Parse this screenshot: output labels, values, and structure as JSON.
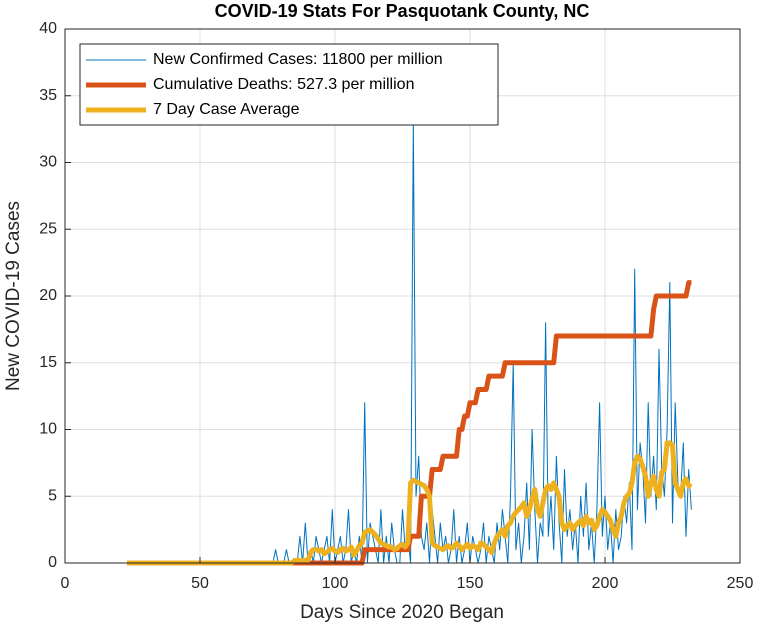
{
  "chart_data": {
    "type": "line",
    "title": "COVID-19 Stats For Pasquotank County, NC",
    "x_label": "Days Since 2020 Began",
    "y_label": "New COVID-19 Cases",
    "xlim": [
      0,
      250
    ],
    "xticks": [
      0,
      50,
      100,
      150,
      200,
      250
    ],
    "ylim": [
      0,
      40
    ],
    "yticks": [
      0,
      5,
      10,
      15,
      20,
      25,
      30,
      35,
      40
    ],
    "grid": true,
    "legend_position": "upper-left",
    "x": [
      23,
      24,
      25,
      26,
      27,
      28,
      29,
      30,
      31,
      32,
      33,
      34,
      35,
      36,
      37,
      38,
      39,
      40,
      41,
      42,
      43,
      44,
      45,
      46,
      47,
      48,
      49,
      50,
      51,
      52,
      53,
      54,
      55,
      56,
      57,
      58,
      59,
      60,
      61,
      62,
      63,
      64,
      65,
      66,
      67,
      68,
      69,
      70,
      71,
      72,
      73,
      74,
      75,
      76,
      77,
      78,
      79,
      80,
      81,
      82,
      83,
      84,
      85,
      86,
      87,
      88,
      89,
      90,
      91,
      92,
      93,
      94,
      95,
      96,
      97,
      98,
      99,
      100,
      101,
      102,
      103,
      104,
      105,
      106,
      107,
      108,
      109,
      110,
      111,
      112,
      113,
      114,
      115,
      116,
      117,
      118,
      119,
      120,
      121,
      122,
      123,
      124,
      125,
      126,
      127,
      128,
      129,
      130,
      131,
      132,
      133,
      134,
      135,
      136,
      137,
      138,
      139,
      140,
      141,
      142,
      143,
      144,
      145,
      146,
      147,
      148,
      149,
      150,
      151,
      152,
      153,
      154,
      155,
      156,
      157,
      158,
      159,
      160,
      161,
      162,
      163,
      164,
      165,
      166,
      167,
      168,
      169,
      170,
      171,
      172,
      173,
      174,
      175,
      176,
      177,
      178,
      179,
      180,
      181,
      182,
      183,
      184,
      185,
      186,
      187,
      188,
      189,
      190,
      191,
      192,
      193,
      194,
      195,
      196,
      197,
      198,
      199,
      200,
      201,
      202,
      203,
      204,
      205,
      206,
      207,
      208,
      209,
      210,
      211,
      212,
      213,
      214,
      215,
      216,
      217,
      218,
      219,
      220,
      221,
      222,
      223,
      224,
      225,
      226,
      227,
      228,
      229,
      230,
      231,
      232
    ],
    "series": [
      {
        "name": "New Confirmed Cases: 11800 per million",
        "color": "#0072BD",
        "width": 1,
        "values": [
          0,
          0,
          0,
          0,
          0,
          0,
          0,
          0,
          0,
          0,
          0,
          0,
          0,
          0,
          0,
          0,
          0,
          0,
          0,
          0,
          0,
          0,
          0,
          0,
          0,
          0,
          0,
          0,
          0,
          0,
          0,
          0,
          0,
          0,
          0,
          0,
          0,
          0,
          0,
          0,
          0,
          0,
          0,
          0,
          0,
          0,
          0,
          0,
          0,
          0,
          0,
          0,
          0,
          0,
          0,
          1,
          0,
          0,
          0,
          1,
          0,
          0,
          0,
          0,
          2,
          0,
          3,
          0,
          1,
          0,
          2,
          1,
          0,
          1,
          2,
          0,
          4,
          0,
          1,
          2,
          0,
          1,
          4,
          0,
          1,
          0,
          2,
          0,
          12,
          0,
          3,
          2,
          1,
          0,
          4,
          0,
          2,
          0,
          3,
          1,
          0,
          0,
          4,
          1,
          2,
          0,
          33,
          5,
          8,
          2,
          1,
          3,
          0,
          4,
          2,
          0,
          3,
          1,
          2,
          0,
          1,
          4,
          0,
          2,
          0,
          1,
          3,
          0,
          2,
          1,
          0,
          1,
          3,
          0,
          2,
          1,
          0,
          3,
          1,
          4,
          2,
          0,
          5,
          15,
          1,
          3,
          0,
          2,
          6,
          1,
          10,
          4,
          0,
          3,
          2,
          18,
          2,
          5,
          1,
          8,
          3,
          0,
          7,
          2,
          4,
          1,
          3,
          0,
          5,
          2,
          6,
          1,
          3,
          0,
          4,
          12,
          2,
          5,
          1,
          3,
          0,
          4,
          1,
          2,
          5,
          3,
          6,
          1,
          22,
          4,
          9,
          7,
          3,
          12,
          5,
          8,
          4,
          16,
          7,
          5,
          10,
          21,
          3,
          12,
          6,
          5,
          9,
          2,
          7,
          4
        ]
      },
      {
        "name": "Cumulative Deaths: 527.3 per million",
        "color": "#D95319",
        "width": 5,
        "values": [
          0,
          0,
          0,
          0,
          0,
          0,
          0,
          0,
          0,
          0,
          0,
          0,
          0,
          0,
          0,
          0,
          0,
          0,
          0,
          0,
          0,
          0,
          0,
          0,
          0,
          0,
          0,
          0,
          0,
          0,
          0,
          0,
          0,
          0,
          0,
          0,
          0,
          0,
          0,
          0,
          0,
          0,
          0,
          0,
          0,
          0,
          0,
          0,
          0,
          0,
          0,
          0,
          0,
          0,
          0,
          0,
          0,
          0,
          0,
          0,
          0,
          0,
          0,
          0,
          0,
          0,
          0,
          0,
          0,
          0,
          0,
          0,
          0,
          0,
          0,
          0,
          0,
          0,
          0,
          0,
          0,
          0,
          0,
          0,
          0,
          0,
          0,
          0,
          1,
          1,
          1,
          1,
          1,
          1,
          1,
          1,
          1,
          1,
          1,
          1,
          1,
          1,
          1,
          1,
          1,
          2,
          2,
          2,
          2,
          5,
          5,
          5,
          5,
          7,
          7,
          7,
          7,
          8,
          8,
          8,
          8,
          8,
          8,
          10,
          10,
          11,
          11,
          12,
          12,
          12,
          13,
          13,
          13,
          13,
          14,
          14,
          14,
          14,
          14,
          14,
          15,
          15,
          15,
          15,
          15,
          15,
          15,
          15,
          15,
          15,
          15,
          15,
          15,
          15,
          15,
          15,
          15,
          15,
          15,
          17,
          17,
          17,
          17,
          17,
          17,
          17,
          17,
          17,
          17,
          17,
          17,
          17,
          17,
          17,
          17,
          17,
          17,
          17,
          17,
          17,
          17,
          17,
          17,
          17,
          17,
          17,
          17,
          17,
          17,
          17,
          17,
          17,
          17,
          17,
          17,
          19,
          20,
          20,
          20,
          20,
          20,
          20,
          20,
          20,
          20,
          20,
          20,
          20,
          21,
          21
        ]
      },
      {
        "name": "7 Day Case Average",
        "color": "#EDB120",
        "width": 5,
        "values": [
          0,
          0,
          0,
          0,
          0,
          0,
          0,
          0,
          0,
          0,
          0,
          0,
          0,
          0,
          0,
          0,
          0,
          0,
          0,
          0,
          0,
          0,
          0,
          0,
          0,
          0,
          0,
          0,
          0,
          0,
          0,
          0,
          0,
          0,
          0,
          0,
          0,
          0,
          0,
          0,
          0,
          0,
          0,
          0,
          0,
          0,
          0,
          0,
          0,
          0,
          0,
          0,
          0,
          0,
          0,
          0,
          0,
          0,
          0,
          0,
          0,
          0,
          0.2,
          0.2,
          0.2,
          0.2,
          0.2,
          0.2,
          0.8,
          1,
          1,
          0.9,
          1,
          0.7,
          0.8,
          1,
          1.1,
          0.9,
          0.8,
          1,
          1.1,
          0.9,
          1,
          1.2,
          0.6,
          0.9,
          1.3,
          1.5,
          2.3,
          2.4,
          2.5,
          2.3,
          2.1,
          1.8,
          1.5,
          1.4,
          1.3,
          1.2,
          1.2,
          1,
          1.1,
          1.3,
          1.4,
          1.2,
          1.5,
          6,
          6.2,
          6.1,
          6,
          5.9,
          5.8,
          5.5,
          5,
          1.5,
          1.3,
          1.2,
          1.1,
          1,
          1.2,
          1.3,
          1.1,
          1.2,
          1.5,
          1.3,
          1,
          1.2,
          1.4,
          1.1,
          1.3,
          1.2,
          1,
          1.5,
          1.4,
          1.2,
          1,
          0.8,
          1.5,
          2,
          2.2,
          2.5,
          2,
          2.8,
          3,
          3.5,
          3.8,
          4,
          4.2,
          4.5,
          3.5,
          4,
          4.8,
          5.5,
          4,
          3.5,
          4.5,
          5.5,
          5.8,
          5.5,
          6,
          5.5,
          5,
          3,
          2.5,
          2.8,
          3,
          2.5,
          2.8,
          3,
          3.2,
          2.8,
          3.5,
          3,
          3.2,
          2.5,
          2.8,
          3.5,
          4,
          3.8,
          3.5,
          3.2,
          2.5,
          2,
          3,
          3.5,
          4.5,
          5,
          5.2,
          6,
          7.5,
          8,
          7.8,
          7.2,
          6.5,
          5,
          6,
          6.5,
          5.5,
          5,
          6.8,
          7,
          9,
          9,
          8.8,
          6,
          5.5,
          5,
          6,
          6.3,
          5.8,
          5.7
        ]
      }
    ]
  }
}
